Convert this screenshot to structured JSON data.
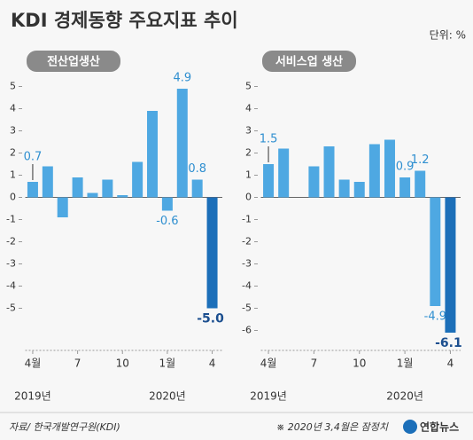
{
  "title": "KDI 경제동향 주요지표 추이",
  "unit": "단위: %",
  "source": "자료/ 한국개발연구원(KDI)",
  "note": "※ 2020년 3,4월은 잠정치",
  "logo": "연합뉴스",
  "chart_data": [
    {
      "type": "bar",
      "title": "전산업생산",
      "categories": [
        "4월",
        null,
        null,
        "7",
        null,
        null,
        "10",
        null,
        null,
        "1월",
        null,
        null,
        "4"
      ],
      "years": [
        "2019년",
        null,
        null,
        null,
        null,
        null,
        null,
        null,
        null,
        "2020년",
        null,
        null,
        null
      ],
      "values": [
        0.7,
        1.4,
        -0.9,
        0.9,
        0.2,
        0.8,
        0.1,
        1.6,
        3.9,
        -0.6,
        4.9,
        0.8,
        -5.0
      ],
      "value_labels": [
        "0.7",
        null,
        null,
        null,
        null,
        null,
        null,
        null,
        null,
        "-0.6",
        "4.9",
        "0.8",
        "-5.0"
      ],
      "colors": [
        "#4ea8e2",
        "#4ea8e2",
        "#4ea8e2",
        "#4ea8e2",
        "#4ea8e2",
        "#4ea8e2",
        "#4ea8e2",
        "#4ea8e2",
        "#4ea8e2",
        "#4ea8e2",
        "#4ea8e2",
        "#4ea8e2",
        "#1c6fb9"
      ],
      "ylim": [
        -6.9,
        5.5
      ],
      "yticks": [
        5,
        4,
        3,
        2,
        1,
        0,
        -1,
        -2,
        -3,
        -4,
        -5
      ]
    },
    {
      "type": "bar",
      "title": "서비스업 생산",
      "categories": [
        "4월",
        null,
        null,
        "7",
        null,
        null,
        "10",
        null,
        null,
        "1월",
        null,
        null,
        "4"
      ],
      "years": [
        "2019년",
        null,
        null,
        null,
        null,
        null,
        null,
        null,
        null,
        "2020년",
        null,
        null,
        null
      ],
      "values": [
        1.5,
        2.2,
        0,
        1.4,
        2.3,
        0.8,
        0.7,
        2.4,
        2.6,
        0.9,
        1.2,
        -4.9,
        -6.1
      ],
      "value_labels": [
        "1.5",
        null,
        null,
        null,
        null,
        null,
        null,
        null,
        null,
        "0.9",
        "1.2",
        "-4.9",
        "-6.1"
      ],
      "colors": [
        "#4ea8e2",
        "#4ea8e2",
        "#4ea8e2",
        "#4ea8e2",
        "#4ea8e2",
        "#4ea8e2",
        "#4ea8e2",
        "#4ea8e2",
        "#4ea8e2",
        "#4ea8e2",
        "#4ea8e2",
        "#4ea8e2",
        "#1c6fb9"
      ],
      "ylim": [
        -6.9,
        5.5
      ],
      "yticks": [
        5,
        4,
        3,
        2,
        1,
        0,
        -1,
        -2,
        -3,
        -4,
        -5,
        -6
      ]
    }
  ]
}
